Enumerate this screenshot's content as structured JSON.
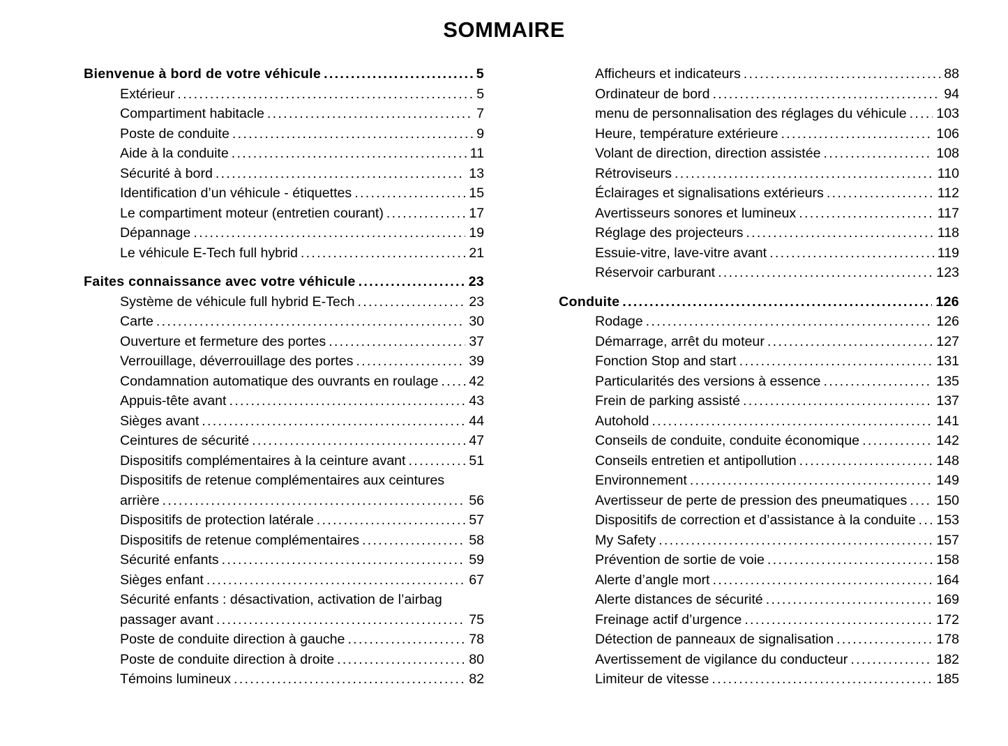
{
  "title": "SOMMAIRE",
  "colors": {
    "text": "#000000",
    "background": "#ffffff"
  },
  "toc": {
    "left_column": [
      {
        "label": "Bienvenue à bord de votre véhicule",
        "page": "5",
        "bold": true
      },
      {
        "label": "Extérieur",
        "page": "5"
      },
      {
        "label": "Compartiment habitacle",
        "page": "7"
      },
      {
        "label": "Poste de conduite",
        "page": "9"
      },
      {
        "label": "Aide à la conduite",
        "page": "11"
      },
      {
        "label": "Sécurité à bord",
        "page": "13"
      },
      {
        "label": "Identification d’un véhicule - étiquettes",
        "page": "15"
      },
      {
        "label": "Le compartiment moteur (entretien courant)",
        "page": "17"
      },
      {
        "label": "Dépannage",
        "page": "19"
      },
      {
        "label": "Le véhicule E-Tech full hybrid",
        "page": "21"
      },
      {
        "label": "Faites connaissance avec votre véhicule",
        "page": "23",
        "bold": true
      },
      {
        "label": "Système de véhicule full hybrid E-Tech",
        "page": "23"
      },
      {
        "label": "Carte",
        "page": "30"
      },
      {
        "label": "Ouverture et fermeture des portes",
        "page": "37"
      },
      {
        "label": "Verrouillage, déverrouillage des portes",
        "page": "39"
      },
      {
        "label": "Condamnation automatique des ouvrants en roulage",
        "page": "42"
      },
      {
        "label": "Appuis-tête avant",
        "page": "43"
      },
      {
        "label": "Sièges avant",
        "page": "44"
      },
      {
        "label": "Ceintures de sécurité",
        "page": "47"
      },
      {
        "label": "Dispositifs complémentaires à la ceinture avant",
        "page": "51"
      },
      {
        "label_lines": [
          "Dispositifs de retenue complémentaires aux ceintures",
          "arrière"
        ],
        "page": "56"
      },
      {
        "label": "Dispositifs de protection latérale",
        "page": "57"
      },
      {
        "label": "Dispositifs de retenue complémentaires",
        "page": "58"
      },
      {
        "label": "Sécurité enfants",
        "page": "59"
      },
      {
        "label": "Sièges enfant",
        "page": "67"
      },
      {
        "label_lines": [
          "Sécurité enfants : désactivation, activation de l’airbag",
          "passager avant"
        ],
        "page": "75"
      },
      {
        "label": "Poste de conduite direction à gauche",
        "page": "78"
      },
      {
        "label": "Poste de conduite direction à droite",
        "page": "80"
      },
      {
        "label": "Témoins lumineux",
        "page": "82"
      }
    ],
    "right_column": [
      {
        "label": "Afficheurs et indicateurs",
        "page": "88"
      },
      {
        "label": "Ordinateur de bord",
        "page": "94"
      },
      {
        "label": "menu de personnalisation des réglages du véhicule",
        "page": "103"
      },
      {
        "label": "Heure, température extérieure",
        "page": "106"
      },
      {
        "label": "Volant de direction, direction assistée",
        "page": "108"
      },
      {
        "label": "Rétroviseurs",
        "page": "110"
      },
      {
        "label": "Éclairages et signalisations extérieurs",
        "page": "112"
      },
      {
        "label": "Avertisseurs sonores et lumineux",
        "page": "117"
      },
      {
        "label": "Réglage des projecteurs",
        "page": "118"
      },
      {
        "label": "Essuie-vitre, lave-vitre avant",
        "page": "119"
      },
      {
        "label": "Réservoir carburant",
        "page": "123"
      },
      {
        "label": "Conduite",
        "page": "126",
        "bold": true
      },
      {
        "label": "Rodage",
        "page": "126"
      },
      {
        "label": "Démarrage, arrêt du moteur",
        "page": "127"
      },
      {
        "label": "Fonction Stop and start",
        "page": "131"
      },
      {
        "label": "Particularités des versions à essence",
        "page": "135"
      },
      {
        "label": "Frein de parking assisté",
        "page": "137"
      },
      {
        "label": "Autohold",
        "page": "141"
      },
      {
        "label": "Conseils de conduite, conduite économique",
        "page": "142"
      },
      {
        "label": "Conseils entretien et antipollution",
        "page": "148"
      },
      {
        "label": "Environnement",
        "page": "149"
      },
      {
        "label": "Avertisseur de perte de pression des pneumatiques",
        "page": "150"
      },
      {
        "label": "Dispositifs de correction et d’assistance à la conduite",
        "page": "153"
      },
      {
        "label": "My Safety",
        "page": "157"
      },
      {
        "label": "Prévention de sortie de voie",
        "page": "158"
      },
      {
        "label": "Alerte d’angle mort",
        "page": "164"
      },
      {
        "label": "Alerte distances de sécurité",
        "page": "169"
      },
      {
        "label": "Freinage actif d’urgence",
        "page": "172"
      },
      {
        "label": "Détection de panneaux de signalisation",
        "page": "178"
      },
      {
        "label": "Avertissement de vigilance du conducteur",
        "page": "182"
      },
      {
        "label": "Limiteur de vitesse",
        "page": "185"
      }
    ]
  }
}
